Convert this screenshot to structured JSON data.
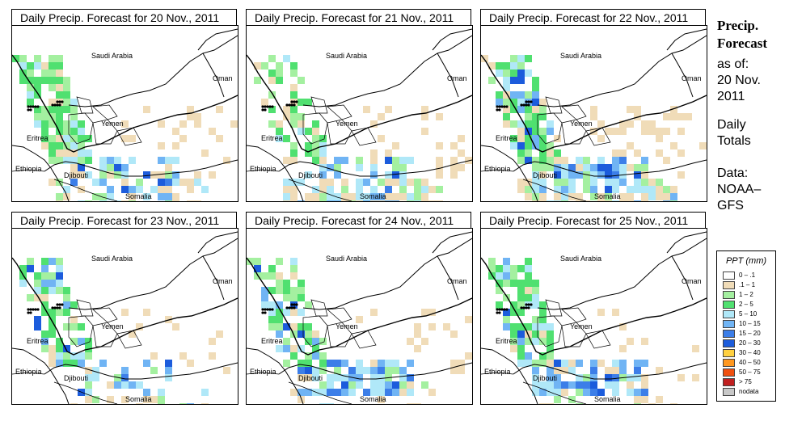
{
  "panels": [
    {
      "title": "Daily Precip. Forecast for  20 Nov., 2011",
      "scenario": 0
    },
    {
      "title": "Daily Precip. Forecast for  21 Nov., 2011",
      "scenario": 1
    },
    {
      "title": "Daily Precip. Forecast for  22 Nov., 2011",
      "scenario": 2
    },
    {
      "title": "Daily Precip. Forecast for  23 Nov., 2011",
      "scenario": 3
    },
    {
      "title": "Daily Precip. Forecast for  24 Nov., 2011",
      "scenario": 4
    },
    {
      "title": "Daily Precip. Forecast for  25 Nov., 2011",
      "scenario": 5
    }
  ],
  "map_labels": {
    "saudi": "Saudi Arabia",
    "oman": "Oman",
    "yemen": "Yemen",
    "eritrea": "Eritrea",
    "ethiopia": "Ethiopia",
    "djibouti": "Djibouti",
    "somalia": "Somalia"
  },
  "sidebar": {
    "title1": "Precip.",
    "title2": "Forecast",
    "asof": "as of:",
    "date1": "20 Nov.",
    "date2": "2011",
    "daily1": "Daily",
    "daily2": "Totals",
    "data1": "Data:",
    "data2": "NOAA–",
    "data3": "GFS"
  },
  "legend": {
    "title": "PPT (mm)",
    "items": [
      {
        "label": "0 – .1",
        "color": "#ffffff"
      },
      {
        "label": ".1 – 1",
        "color": "#f0dcb8"
      },
      {
        "label": "1 – 2",
        "color": "#a4f0a0"
      },
      {
        "label": "2 – 5",
        "color": "#50e070"
      },
      {
        "label": "5 – 10",
        "color": "#b0e8f8"
      },
      {
        "label": "10 – 15",
        "color": "#70b4f4"
      },
      {
        "label": "15 – 20",
        "color": "#3c7ee8"
      },
      {
        "label": "20 – 30",
        "color": "#1c5cdc"
      },
      {
        "label": "30 – 40",
        "color": "#ffd040"
      },
      {
        "label": "40 – 50",
        "color": "#ff9820"
      },
      {
        "label": "50 – 75",
        "color": "#f05010"
      },
      {
        "label": "> 75",
        "color": "#c02020"
      },
      {
        "label": "nodata",
        "color": "#c8c8c8"
      }
    ]
  }
}
